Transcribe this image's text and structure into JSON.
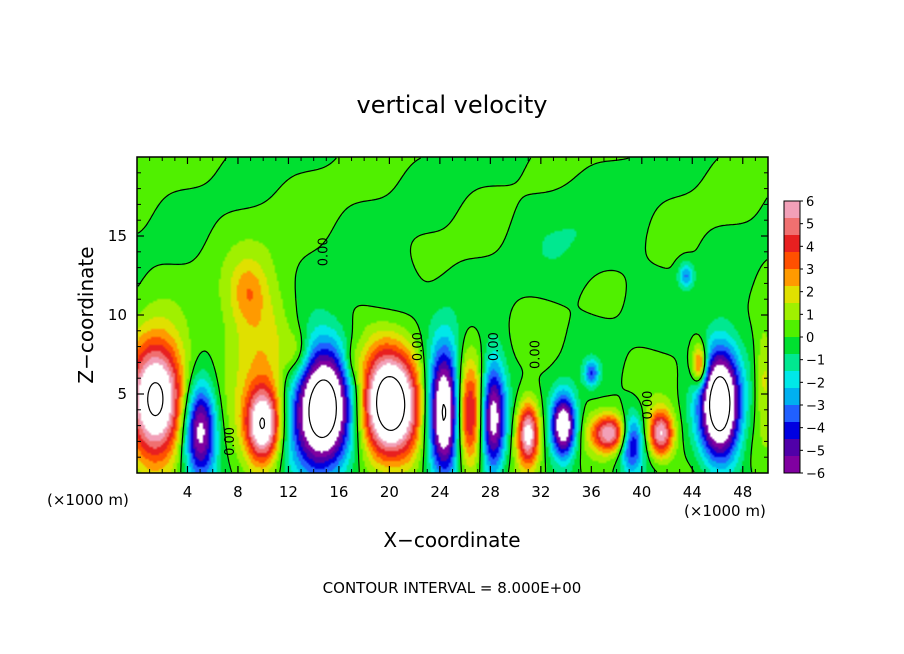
{
  "chart_data": {
    "type": "heatmap",
    "title": "vertical velocity",
    "xlabel": "X−coordinate",
    "ylabel": "Z−coordinate",
    "x_units": "(×1000 m)",
    "y_units": "(×1000 m)",
    "xlim": [
      0,
      50
    ],
    "ylim": [
      0,
      20
    ],
    "x_ticks": [
      4,
      8,
      12,
      16,
      20,
      24,
      28,
      32,
      36,
      40,
      44,
      48
    ],
    "y_ticks": [
      5,
      10,
      15
    ],
    "footer": "CONTOUR INTERVAL = 8.000E+00",
    "colorbar": {
      "ticks": [
        "6",
        "5",
        "4",
        "3",
        "2",
        "1",
        "0",
        "−1",
        "−2",
        "−3",
        "−4",
        "−5",
        "−6"
      ],
      "range": [
        -6,
        6
      ],
      "colors": [
        "#f2a0b8",
        "#f07070",
        "#e82020",
        "#ff5000",
        "#ff9a00",
        "#e0e000",
        "#a0f000",
        "#50f000",
        "#00e030",
        "#00e890",
        "#00e8e8",
        "#00b0f0",
        "#2060ff",
        "#0000e0",
        "#5000a8",
        "#8000a0"
      ]
    },
    "contour_labels": [
      {
        "text": "0.00",
        "x": 15.1,
        "z": 14.0,
        "rotate": -90
      },
      {
        "text": "0.00",
        "x": 7.7,
        "z": 2.0,
        "rotate": -90
      },
      {
        "text": "0.00",
        "x": 22.6,
        "z": 8.0,
        "rotate": -90
      },
      {
        "text": "0.00",
        "x": 28.6,
        "z": 8.0,
        "rotate": -90
      },
      {
        "text": "0.00",
        "x": 31.9,
        "z": 7.5,
        "rotate": -90
      },
      {
        "text": "0.00",
        "x": 40.8,
        "z": 4.3,
        "rotate": -90
      }
    ],
    "blobs": [
      {
        "x": 1.5,
        "z": 4.8,
        "rx": 2.2,
        "rz": 3.6,
        "w": 9
      },
      {
        "x": 10.0,
        "z": 3.0,
        "rx": 1.4,
        "rz": 2.4,
        "w": 8
      },
      {
        "x": 20.0,
        "z": 4.5,
        "rx": 2.4,
        "rz": 3.5,
        "w": 10
      },
      {
        "x": 26.2,
        "z": 3.5,
        "rx": 1.2,
        "rz": 3.5,
        "w": 6
      },
      {
        "x": 31.0,
        "z": 2.5,
        "rx": 0.9,
        "rz": 2.0,
        "w": 7
      },
      {
        "x": 37.5,
        "z": 2.5,
        "rx": 1.5,
        "rz": 1.2,
        "w": 6
      },
      {
        "x": 41.5,
        "z": 2.5,
        "rx": 1.0,
        "rz": 1.5,
        "w": 6
      },
      {
        "x": 44.6,
        "z": 6.8,
        "rx": 0.6,
        "rz": 1.3,
        "w": 5
      },
      {
        "x": 9.4,
        "z": 8.5,
        "rx": 3.0,
        "rz": 5.0,
        "w": 2.2
      },
      {
        "x": 8.8,
        "z": 11.5,
        "rx": 1.3,
        "rz": 1.8,
        "w": 1.5
      },
      {
        "x": 12.8,
        "z": 7.5,
        "rx": 1.0,
        "rz": 1.5,
        "w": 1.8
      },
      {
        "x": 17.0,
        "z": 7.0,
        "rx": 0.8,
        "rz": 1.3,
        "w": 1.3
      },
      {
        "x": 49.7,
        "z": 6.0,
        "rx": 0.7,
        "rz": 3.0,
        "w": 2.0
      },
      {
        "x": 5.0,
        "z": 2.8,
        "rx": 1.3,
        "rz": 3.0,
        "w": -7
      },
      {
        "x": 14.7,
        "z": 4.0,
        "rx": 2.4,
        "rz": 4.0,
        "w": -10
      },
      {
        "x": 24.4,
        "z": 4.0,
        "rx": 1.4,
        "rz": 4.0,
        "w": -9
      },
      {
        "x": 28.2,
        "z": 3.5,
        "rx": 1.0,
        "rz": 3.5,
        "w": -7
      },
      {
        "x": 33.8,
        "z": 3.0,
        "rx": 1.0,
        "rz": 2.0,
        "w": -8
      },
      {
        "x": 39.2,
        "z": 2.0,
        "rx": 0.9,
        "rz": 1.8,
        "w": -5
      },
      {
        "x": 46.2,
        "z": 4.5,
        "rx": 1.6,
        "rz": 3.5,
        "w": -10
      },
      {
        "x": 43.5,
        "z": 12.5,
        "rx": 0.6,
        "rz": 0.8,
        "w": -3
      },
      {
        "x": 36.0,
        "z": 6.3,
        "rx": 0.6,
        "rz": 0.8,
        "w": -3.5
      },
      {
        "x": 20.0,
        "z": 11.5,
        "rx": 3.0,
        "rz": 2.5,
        "w": -0.8
      },
      {
        "x": 35.0,
        "z": 15.0,
        "rx": 5.0,
        "rz": 3.5,
        "w": -0.6
      }
    ]
  }
}
